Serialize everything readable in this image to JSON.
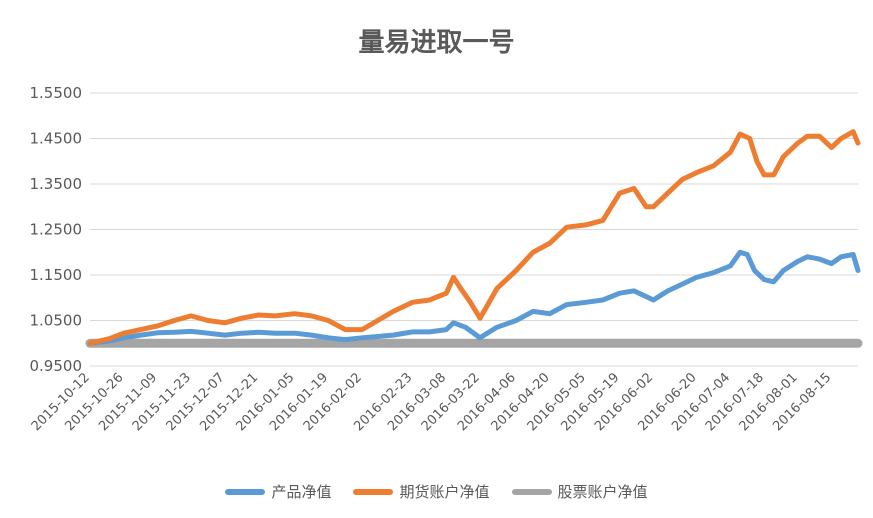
{
  "chart_data": {
    "type": "line",
    "title": "量易进取一号",
    "ylim": [
      0.95,
      1.55
    ],
    "yticks": [
      "0.9500",
      "1.0500",
      "1.1500",
      "1.2500",
      "1.3500",
      "1.4500",
      "1.5500"
    ],
    "x_tick_labels": [
      "2015-10-12",
      "2015-10-26",
      "2015-11-09",
      "2015-11-23",
      "2015-12-07",
      "2015-12-21",
      "2016-01-05",
      "2016-01-19",
      "2016-02-02",
      "2016-02-23",
      "2016-03-08",
      "2016-03-22",
      "2016-04-06",
      "2016-04-20",
      "2016-05-05",
      "2016-05-19",
      "2016-06-02",
      "2016-06-20",
      "2016-07-04",
      "2016-07-18",
      "2016-08-01",
      "2016-08-15"
    ],
    "grid": true,
    "legend_position": "bottom",
    "series": [
      {
        "name": "产品净值",
        "color": "#5b9bd5",
        "values": [
          [
            "2015-10-12",
            1.0
          ],
          [
            "2015-10-20",
            1.005
          ],
          [
            "2015-10-26",
            1.012
          ],
          [
            "2015-11-02",
            1.018
          ],
          [
            "2015-11-09",
            1.023
          ],
          [
            "2015-11-16",
            1.024
          ],
          [
            "2015-11-23",
            1.026
          ],
          [
            "2015-11-30",
            1.022
          ],
          [
            "2015-12-07",
            1.018
          ],
          [
            "2015-12-14",
            1.022
          ],
          [
            "2015-12-21",
            1.024
          ],
          [
            "2015-12-28",
            1.022
          ],
          [
            "2016-01-05",
            1.022
          ],
          [
            "2016-01-12",
            1.018
          ],
          [
            "2016-01-19",
            1.012
          ],
          [
            "2016-01-26",
            1.008
          ],
          [
            "2016-02-02",
            1.012
          ],
          [
            "2016-02-15",
            1.018
          ],
          [
            "2016-02-23",
            1.025
          ],
          [
            "2016-03-01",
            1.025
          ],
          [
            "2016-03-08",
            1.03
          ],
          [
            "2016-03-11",
            1.045
          ],
          [
            "2016-03-16",
            1.035
          ],
          [
            "2016-03-22",
            1.012
          ],
          [
            "2016-03-29",
            1.035
          ],
          [
            "2016-04-06",
            1.05
          ],
          [
            "2016-04-13",
            1.07
          ],
          [
            "2016-04-20",
            1.065
          ],
          [
            "2016-04-27",
            1.085
          ],
          [
            "2016-05-05",
            1.09
          ],
          [
            "2016-05-12",
            1.095
          ],
          [
            "2016-05-19",
            1.11
          ],
          [
            "2016-05-25",
            1.115
          ],
          [
            "2016-06-02",
            1.095
          ],
          [
            "2016-06-08",
            1.115
          ],
          [
            "2016-06-14",
            1.13
          ],
          [
            "2016-06-20",
            1.145
          ],
          [
            "2016-06-27",
            1.155
          ],
          [
            "2016-07-04",
            1.17
          ],
          [
            "2016-07-08",
            1.2
          ],
          [
            "2016-07-11",
            1.195
          ],
          [
            "2016-07-14",
            1.16
          ],
          [
            "2016-07-18",
            1.14
          ],
          [
            "2016-07-22",
            1.135
          ],
          [
            "2016-07-26",
            1.16
          ],
          [
            "2016-08-01",
            1.18
          ],
          [
            "2016-08-05",
            1.19
          ],
          [
            "2016-08-10",
            1.185
          ],
          [
            "2016-08-15",
            1.175
          ],
          [
            "2016-08-19",
            1.19
          ],
          [
            "2016-08-24",
            1.195
          ],
          [
            "2016-08-26",
            1.16
          ]
        ]
      },
      {
        "name": "期货账户净值",
        "color": "#ed7d31",
        "values": [
          [
            "2015-10-12",
            1.0
          ],
          [
            "2015-10-20",
            1.01
          ],
          [
            "2015-10-26",
            1.022
          ],
          [
            "2015-11-02",
            1.03
          ],
          [
            "2015-11-09",
            1.038
          ],
          [
            "2015-11-16",
            1.05
          ],
          [
            "2015-11-23",
            1.06
          ],
          [
            "2015-11-30",
            1.05
          ],
          [
            "2015-12-07",
            1.045
          ],
          [
            "2015-12-14",
            1.055
          ],
          [
            "2015-12-21",
            1.062
          ],
          [
            "2015-12-28",
            1.06
          ],
          [
            "2016-01-05",
            1.065
          ],
          [
            "2016-01-12",
            1.06
          ],
          [
            "2016-01-19",
            1.05
          ],
          [
            "2016-01-26",
            1.03
          ],
          [
            "2016-02-02",
            1.03
          ],
          [
            "2016-02-15",
            1.07
          ],
          [
            "2016-02-23",
            1.09
          ],
          [
            "2016-03-01",
            1.095
          ],
          [
            "2016-03-08",
            1.11
          ],
          [
            "2016-03-11",
            1.145
          ],
          [
            "2016-03-14",
            1.12
          ],
          [
            "2016-03-18",
            1.09
          ],
          [
            "2016-03-22",
            1.055
          ],
          [
            "2016-03-29",
            1.12
          ],
          [
            "2016-04-06",
            1.16
          ],
          [
            "2016-04-13",
            1.2
          ],
          [
            "2016-04-20",
            1.22
          ],
          [
            "2016-04-27",
            1.255
          ],
          [
            "2016-05-05",
            1.26
          ],
          [
            "2016-05-12",
            1.27
          ],
          [
            "2016-05-19",
            1.33
          ],
          [
            "2016-05-25",
            1.34
          ],
          [
            "2016-05-30",
            1.3
          ],
          [
            "2016-06-02",
            1.3
          ],
          [
            "2016-06-08",
            1.33
          ],
          [
            "2016-06-14",
            1.36
          ],
          [
            "2016-06-20",
            1.375
          ],
          [
            "2016-06-27",
            1.39
          ],
          [
            "2016-07-04",
            1.42
          ],
          [
            "2016-07-08",
            1.46
          ],
          [
            "2016-07-12",
            1.45
          ],
          [
            "2016-07-15",
            1.4
          ],
          [
            "2016-07-18",
            1.37
          ],
          [
            "2016-07-22",
            1.37
          ],
          [
            "2016-07-26",
            1.41
          ],
          [
            "2016-08-01",
            1.44
          ],
          [
            "2016-08-05",
            1.455
          ],
          [
            "2016-08-10",
            1.455
          ],
          [
            "2016-08-15",
            1.43
          ],
          [
            "2016-08-19",
            1.45
          ],
          [
            "2016-08-24",
            1.465
          ],
          [
            "2016-08-26",
            1.44
          ]
        ]
      },
      {
        "name": "股票账户净值",
        "color": "#a5a5a5",
        "values": [
          [
            "2015-10-12",
            1.0
          ],
          [
            "2016-08-26",
            1.0
          ]
        ]
      }
    ]
  }
}
